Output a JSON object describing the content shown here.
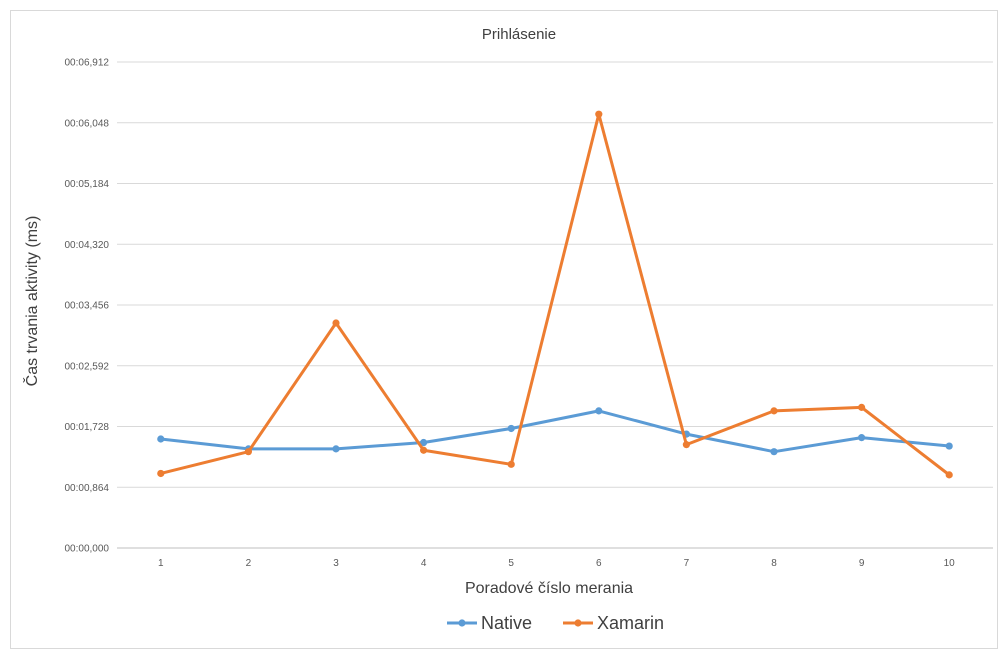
{
  "chart_data": {
    "type": "line",
    "title": "Prihlásenie",
    "xlabel": "Poradové číslo merania",
    "ylabel": "Čas trvania aktivity  (ms)",
    "categories": [
      "1",
      "2",
      "3",
      "4",
      "5",
      "6",
      "7",
      "8",
      "9",
      "10"
    ],
    "y_ticks": [
      "00:00,000",
      "00:00,864",
      "00:01,728",
      "00:02,592",
      "00:03,456",
      "00:04,320",
      "00:05,184",
      "00:06,048",
      "00:06,912"
    ],
    "ylim": [
      0,
      6.912
    ],
    "grid": true,
    "legend_position": "bottom",
    "series": [
      {
        "name": "Native",
        "color": "#5b9bd5",
        "values": [
          1.55,
          1.41,
          1.41,
          1.5,
          1.7,
          1.95,
          1.62,
          1.37,
          1.57,
          1.45
        ]
      },
      {
        "name": "Xamarin",
        "color": "#ed7d31",
        "values": [
          1.06,
          1.37,
          3.2,
          1.39,
          1.19,
          6.17,
          1.47,
          1.95,
          2.0,
          1.04
        ]
      }
    ]
  }
}
